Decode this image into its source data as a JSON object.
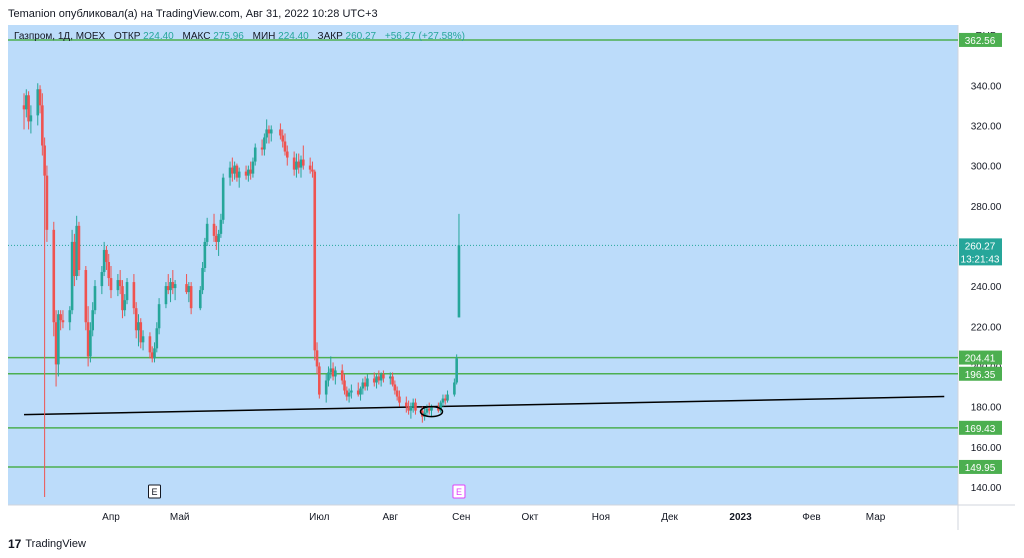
{
  "header": {
    "text": "Temanion опубликовал(а) на TradingView.com, Авг 31, 2022 10:28 UTC+3"
  },
  "footer": {
    "logo_mark": "17",
    "brand": "TradingView"
  },
  "legend": {
    "symbol": "Газпром, 1Д, MOEX",
    "o_label": "ОТКР",
    "o_value": "224.40",
    "h_label": "МАКС",
    "h_value": "275.96",
    "l_label": "МИН",
    "l_value": "224.40",
    "c_label": "ЗАКР",
    "c_value": "260.27",
    "change": "+56.27 (+27.58%)"
  },
  "colors": {
    "background": "#bcdcfa",
    "up": "#26a69a",
    "down": "#ef5350",
    "level_line": "#4caf50",
    "level_label_bg": "#4caf50",
    "price_label_bg": "#26a69a",
    "trendline": "#000000"
  },
  "chart_data": {
    "type": "candlestick",
    "currency": "RUB",
    "ylim": [
      131,
      370
    ],
    "yticks": [
      "140.00",
      "160.00",
      "180.00",
      "200.00",
      "220.00",
      "240.00",
      "260.00",
      "280.00",
      "300.00",
      "320.00",
      "340.00"
    ],
    "xticks": [
      "Апр",
      "Май",
      "Июл",
      "Авг",
      "Сен",
      "Окт",
      "Ноя",
      "Дек",
      "2023",
      "Фев",
      "Мар"
    ],
    "horizontal_levels": [
      362.56,
      204.41,
      196.35,
      169.43,
      149.95
    ],
    "level_labels": [
      "362.56",
      "204.41",
      "196.35",
      "169.43",
      "149.95"
    ],
    "last_price": {
      "value": 260.27,
      "label": "260.27",
      "countdown": "13:21:43"
    },
    "event_markers": [
      {
        "label": "E",
        "near": "Апр"
      },
      {
        "label": "E",
        "near": "Сен"
      }
    ],
    "trendline": {
      "from": {
        "date": "2022-02-22",
        "value": 176
      },
      "to": {
        "date": "2023-03-31",
        "value": 185
      }
    },
    "candles": [
      {
        "d": "2022-02-22",
        "o": 330,
        "h": 336,
        "l": 318,
        "c": 328
      },
      {
        "d": "2022-02-23",
        "o": 328,
        "h": 338,
        "l": 324,
        "c": 335
      },
      {
        "d": "2022-02-24",
        "o": 335,
        "h": 337,
        "l": 318,
        "c": 322
      },
      {
        "d": "2022-02-25",
        "o": 322,
        "h": 330,
        "l": 316,
        "c": 325
      },
      {
        "d": "2022-02-28",
        "o": 325,
        "h": 341,
        "l": 320,
        "c": 338
      },
      {
        "d": "2022-03-01",
        "o": 338,
        "h": 340,
        "l": 326,
        "c": 330
      },
      {
        "d": "2022-03-02",
        "o": 330,
        "h": 336,
        "l": 305,
        "c": 310
      },
      {
        "d": "2022-03-03",
        "o": 310,
        "h": 314,
        "l": 135,
        "c": 295
      },
      {
        "d": "2022-03-04",
        "o": 295,
        "h": 300,
        "l": 262,
        "c": 268
      },
      {
        "d": "2022-03-07",
        "o": 268,
        "h": 272,
        "l": 215,
        "c": 222
      },
      {
        "d": "2022-03-08",
        "o": 222,
        "h": 228,
        "l": 190,
        "c": 201
      },
      {
        "d": "2022-03-09",
        "o": 201,
        "h": 228,
        "l": 195,
        "c": 226
      },
      {
        "d": "2022-03-10",
        "o": 226,
        "h": 228,
        "l": 218,
        "c": 223
      },
      {
        "d": "2022-03-11",
        "o": 223,
        "h": 228,
        "l": 219,
        "c": 222
      },
      {
        "d": "2022-03-14",
        "o": 222,
        "h": 230,
        "l": 218,
        "c": 228
      },
      {
        "d": "2022-03-15",
        "o": 228,
        "h": 268,
        "l": 226,
        "c": 262
      },
      {
        "d": "2022-03-16",
        "o": 262,
        "h": 266,
        "l": 240,
        "c": 245
      },
      {
        "d": "2022-03-17",
        "o": 245,
        "h": 275,
        "l": 243,
        "c": 270
      },
      {
        "d": "2022-03-18",
        "o": 270,
        "h": 272,
        "l": 245,
        "c": 248
      },
      {
        "d": "2022-03-21",
        "o": 248,
        "h": 250,
        "l": 218,
        "c": 222
      },
      {
        "d": "2022-03-22",
        "o": 222,
        "h": 230,
        "l": 200,
        "c": 205
      },
      {
        "d": "2022-03-23",
        "o": 205,
        "h": 222,
        "l": 202,
        "c": 218
      },
      {
        "d": "2022-03-24",
        "o": 218,
        "h": 232,
        "l": 215,
        "c": 228
      },
      {
        "d": "2022-03-25",
        "o": 228,
        "h": 243,
        "l": 226,
        "c": 240
      },
      {
        "d": "2022-03-28",
        "o": 240,
        "h": 250,
        "l": 236,
        "c": 247
      },
      {
        "d": "2022-03-29",
        "o": 247,
        "h": 262,
        "l": 245,
        "c": 258
      },
      {
        "d": "2022-03-30",
        "o": 258,
        "h": 260,
        "l": 248,
        "c": 252
      },
      {
        "d": "2022-03-31",
        "o": 252,
        "h": 256,
        "l": 240,
        "c": 244
      },
      {
        "d": "2022-04-01",
        "o": 244,
        "h": 250,
        "l": 234,
        "c": 238
      },
      {
        "d": "2022-04-04",
        "o": 238,
        "h": 246,
        "l": 235,
        "c": 243
      },
      {
        "d": "2022-04-05",
        "o": 243,
        "h": 248,
        "l": 236,
        "c": 240
      },
      {
        "d": "2022-04-06",
        "o": 240,
        "h": 243,
        "l": 224,
        "c": 228
      },
      {
        "d": "2022-04-07",
        "o": 228,
        "h": 236,
        "l": 225,
        "c": 233
      },
      {
        "d": "2022-04-08",
        "o": 233,
        "h": 244,
        "l": 231,
        "c": 242
      },
      {
        "d": "2022-04-11",
        "o": 242,
        "h": 246,
        "l": 226,
        "c": 229
      },
      {
        "d": "2022-04-12",
        "o": 229,
        "h": 232,
        "l": 214,
        "c": 218
      },
      {
        "d": "2022-04-13",
        "o": 218,
        "h": 226,
        "l": 210,
        "c": 222
      },
      {
        "d": "2022-04-14",
        "o": 222,
        "h": 224,
        "l": 209,
        "c": 212
      },
      {
        "d": "2022-04-15",
        "o": 212,
        "h": 218,
        "l": 208,
        "c": 215
      },
      {
        "d": "2022-04-18",
        "o": 215,
        "h": 217,
        "l": 204,
        "c": 207
      },
      {
        "d": "2022-04-19",
        "o": 207,
        "h": 210,
        "l": 202,
        "c": 204
      },
      {
        "d": "2022-04-20",
        "o": 204,
        "h": 212,
        "l": 202,
        "c": 209
      },
      {
        "d": "2022-04-21",
        "o": 209,
        "h": 222,
        "l": 207,
        "c": 219
      },
      {
        "d": "2022-04-22",
        "o": 219,
        "h": 234,
        "l": 216,
        "c": 231
      },
      {
        "d": "2022-04-25",
        "o": 231,
        "h": 242,
        "l": 229,
        "c": 240
      },
      {
        "d": "2022-04-26",
        "o": 240,
        "h": 246,
        "l": 236,
        "c": 238
      },
      {
        "d": "2022-04-27",
        "o": 238,
        "h": 244,
        "l": 232,
        "c": 242
      },
      {
        "d": "2022-04-28",
        "o": 242,
        "h": 248,
        "l": 236,
        "c": 239
      },
      {
        "d": "2022-04-29",
        "o": 239,
        "h": 243,
        "l": 233,
        "c": 241
      },
      {
        "d": "2022-05-04",
        "o": 241,
        "h": 246,
        "l": 236,
        "c": 237
      },
      {
        "d": "2022-05-05",
        "o": 237,
        "h": 242,
        "l": 232,
        "c": 240
      },
      {
        "d": "2022-05-06",
        "o": 240,
        "h": 242,
        "l": 226,
        "c": 229
      },
      {
        "d": "2022-05-10",
        "o": 229,
        "h": 240,
        "l": 228,
        "c": 238
      },
      {
        "d": "2022-05-11",
        "o": 238,
        "h": 252,
        "l": 236,
        "c": 249
      },
      {
        "d": "2022-05-12",
        "o": 249,
        "h": 264,
        "l": 247,
        "c": 262
      },
      {
        "d": "2022-05-13",
        "o": 262,
        "h": 274,
        "l": 260,
        "c": 271
      },
      {
        "d": "2022-05-16",
        "o": 271,
        "h": 276,
        "l": 262,
        "c": 265
      },
      {
        "d": "2022-05-17",
        "o": 265,
        "h": 270,
        "l": 258,
        "c": 262
      },
      {
        "d": "2022-05-18",
        "o": 262,
        "h": 268,
        "l": 255,
        "c": 266
      },
      {
        "d": "2022-05-19",
        "o": 266,
        "h": 276,
        "l": 264,
        "c": 273
      },
      {
        "d": "2022-05-20",
        "o": 273,
        "h": 296,
        "l": 271,
        "c": 294
      },
      {
        "d": "2022-05-23",
        "o": 294,
        "h": 302,
        "l": 290,
        "c": 299
      },
      {
        "d": "2022-05-24",
        "o": 299,
        "h": 304,
        "l": 292,
        "c": 296
      },
      {
        "d": "2022-05-25",
        "o": 296,
        "h": 302,
        "l": 293,
        "c": 300
      },
      {
        "d": "2022-05-26",
        "o": 300,
        "h": 301,
        "l": 292,
        "c": 294
      },
      {
        "d": "2022-05-27",
        "o": 294,
        "h": 299,
        "l": 289,
        "c": 297
      },
      {
        "d": "2022-05-30",
        "o": 297,
        "h": 300,
        "l": 293,
        "c": 295
      },
      {
        "d": "2022-05-31",
        "o": 295,
        "h": 300,
        "l": 292,
        "c": 298
      },
      {
        "d": "2022-06-01",
        "o": 298,
        "h": 302,
        "l": 293,
        "c": 296
      },
      {
        "d": "2022-06-02",
        "o": 296,
        "h": 304,
        "l": 294,
        "c": 302
      },
      {
        "d": "2022-06-03",
        "o": 302,
        "h": 311,
        "l": 300,
        "c": 309
      },
      {
        "d": "2022-06-06",
        "o": 309,
        "h": 313,
        "l": 305,
        "c": 308
      },
      {
        "d": "2022-06-07",
        "o": 308,
        "h": 316,
        "l": 305,
        "c": 314
      },
      {
        "d": "2022-06-08",
        "o": 314,
        "h": 323,
        "l": 311,
        "c": 318
      },
      {
        "d": "2022-06-09",
        "o": 318,
        "h": 320,
        "l": 311,
        "c": 316
      },
      {
        "d": "2022-06-10",
        "o": 316,
        "h": 320,
        "l": 312,
        "c": 318
      },
      {
        "d": "2022-06-14",
        "o": 318,
        "h": 321,
        "l": 313,
        "c": 315
      },
      {
        "d": "2022-06-15",
        "o": 315,
        "h": 318,
        "l": 309,
        "c": 312
      },
      {
        "d": "2022-06-16",
        "o": 312,
        "h": 316,
        "l": 305,
        "c": 307
      },
      {
        "d": "2022-06-17",
        "o": 307,
        "h": 310,
        "l": 300,
        "c": 304
      },
      {
        "d": "2022-06-20",
        "o": 304,
        "h": 307,
        "l": 295,
        "c": 298
      },
      {
        "d": "2022-06-21",
        "o": 298,
        "h": 306,
        "l": 294,
        "c": 302
      },
      {
        "d": "2022-06-22",
        "o": 302,
        "h": 306,
        "l": 296,
        "c": 299
      },
      {
        "d": "2022-06-23",
        "o": 299,
        "h": 305,
        "l": 294,
        "c": 303
      },
      {
        "d": "2022-06-24",
        "o": 303,
        "h": 310,
        "l": 298,
        "c": 300
      },
      {
        "d": "2022-06-27",
        "o": 300,
        "h": 304,
        "l": 296,
        "c": 298
      },
      {
        "d": "2022-06-28",
        "o": 298,
        "h": 302,
        "l": 294,
        "c": 297
      },
      {
        "d": "2022-06-29",
        "o": 297,
        "h": 298,
        "l": 203,
        "c": 208
      },
      {
        "d": "2022-06-30",
        "o": 208,
        "h": 212,
        "l": 196,
        "c": 200
      },
      {
        "d": "2022-07-01",
        "o": 200,
        "h": 202,
        "l": 184,
        "c": 186
      },
      {
        "d": "2022-07-04",
        "o": 186,
        "h": 196,
        "l": 182,
        "c": 193
      },
      {
        "d": "2022-07-05",
        "o": 193,
        "h": 200,
        "l": 190,
        "c": 197
      },
      {
        "d": "2022-07-06",
        "o": 197,
        "h": 205,
        "l": 194,
        "c": 199
      },
      {
        "d": "2022-07-07",
        "o": 199,
        "h": 202,
        "l": 193,
        "c": 195
      },
      {
        "d": "2022-07-08",
        "o": 195,
        "h": 200,
        "l": 191,
        "c": 198
      },
      {
        "d": "2022-07-11",
        "o": 198,
        "h": 201,
        "l": 191,
        "c": 193
      },
      {
        "d": "2022-07-12",
        "o": 193,
        "h": 196,
        "l": 186,
        "c": 188
      },
      {
        "d": "2022-07-13",
        "o": 188,
        "h": 190,
        "l": 183,
        "c": 185
      },
      {
        "d": "2022-07-14",
        "o": 185,
        "h": 189,
        "l": 182,
        "c": 187
      },
      {
        "d": "2022-07-15",
        "o": 187,
        "h": 191,
        "l": 184,
        "c": 188
      },
      {
        "d": "2022-07-18",
        "o": 188,
        "h": 192,
        "l": 185,
        "c": 186
      },
      {
        "d": "2022-07-19",
        "o": 186,
        "h": 190,
        "l": 183,
        "c": 189
      },
      {
        "d": "2022-07-20",
        "o": 189,
        "h": 194,
        "l": 186,
        "c": 192
      },
      {
        "d": "2022-07-21",
        "o": 192,
        "h": 195,
        "l": 188,
        "c": 190
      },
      {
        "d": "2022-07-22",
        "o": 190,
        "h": 196,
        "l": 188,
        "c": 194
      },
      {
        "d": "2022-07-25",
        "o": 194,
        "h": 197,
        "l": 190,
        "c": 192
      },
      {
        "d": "2022-07-26",
        "o": 192,
        "h": 196,
        "l": 189,
        "c": 195
      },
      {
        "d": "2022-07-27",
        "o": 195,
        "h": 198,
        "l": 191,
        "c": 193
      },
      {
        "d": "2022-07-28",
        "o": 193,
        "h": 197,
        "l": 190,
        "c": 196
      },
      {
        "d": "2022-07-29",
        "o": 196,
        "h": 198,
        "l": 192,
        "c": 194
      },
      {
        "d": "2022-08-01",
        "o": 194,
        "h": 197,
        "l": 191,
        "c": 195
      },
      {
        "d": "2022-08-02",
        "o": 195,
        "h": 197,
        "l": 190,
        "c": 191
      },
      {
        "d": "2022-08-03",
        "o": 191,
        "h": 193,
        "l": 186,
        "c": 188
      },
      {
        "d": "2022-08-04",
        "o": 188,
        "h": 190,
        "l": 183,
        "c": 185
      },
      {
        "d": "2022-08-05",
        "o": 185,
        "h": 188,
        "l": 180,
        "c": 182
      },
      {
        "d": "2022-08-08",
        "o": 182,
        "h": 185,
        "l": 177,
        "c": 180
      },
      {
        "d": "2022-08-09",
        "o": 180,
        "h": 183,
        "l": 176,
        "c": 178
      },
      {
        "d": "2022-08-10",
        "o": 178,
        "h": 182,
        "l": 174,
        "c": 180
      },
      {
        "d": "2022-08-11",
        "o": 180,
        "h": 184,
        "l": 177,
        "c": 182
      },
      {
        "d": "2022-08-12",
        "o": 182,
        "h": 184,
        "l": 176,
        "c": 178
      },
      {
        "d": "2022-08-15",
        "o": 178,
        "h": 180,
        "l": 172,
        "c": 175
      },
      {
        "d": "2022-08-16",
        "o": 175,
        "h": 179,
        "l": 173,
        "c": 177
      },
      {
        "d": "2022-08-17",
        "o": 177,
        "h": 181,
        "l": 175,
        "c": 179
      },
      {
        "d": "2022-08-18",
        "o": 179,
        "h": 182,
        "l": 176,
        "c": 178
      },
      {
        "d": "2022-08-19",
        "o": 178,
        "h": 181,
        "l": 175,
        "c": 180
      },
      {
        "d": "2022-08-22",
        "o": 180,
        "h": 182,
        "l": 177,
        "c": 178
      },
      {
        "d": "2022-08-23",
        "o": 178,
        "h": 183,
        "l": 177,
        "c": 182
      },
      {
        "d": "2022-08-24",
        "o": 182,
        "h": 186,
        "l": 180,
        "c": 184
      },
      {
        "d": "2022-08-25",
        "o": 184,
        "h": 186,
        "l": 181,
        "c": 183
      },
      {
        "d": "2022-08-26",
        "o": 183,
        "h": 188,
        "l": 182,
        "c": 186
      },
      {
        "d": "2022-08-29",
        "o": 186,
        "h": 194,
        "l": 185,
        "c": 192
      },
      {
        "d": "2022-08-30",
        "o": 192,
        "h": 206,
        "l": 191,
        "c": 204
      },
      {
        "d": "2022-08-31",
        "o": 224.4,
        "h": 275.96,
        "l": 224.4,
        "c": 260.27
      }
    ]
  }
}
